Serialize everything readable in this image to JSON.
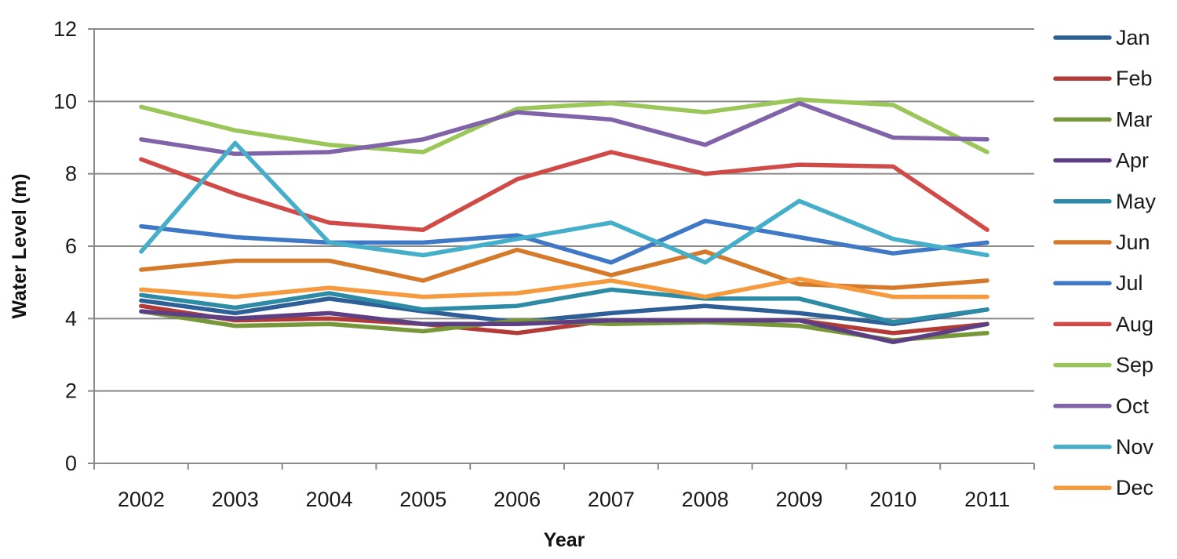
{
  "chart_data": {
    "type": "line",
    "title": "",
    "xlabel": "Year",
    "ylabel": "Water Level (m)",
    "ylim": [
      0,
      12
    ],
    "yticks": [
      0,
      2,
      4,
      6,
      8,
      10,
      12
    ],
    "grid": "horizontal",
    "legend": "right",
    "categories": [
      "2002",
      "2003",
      "2004",
      "2005",
      "2006",
      "2007",
      "2008",
      "2009",
      "2010",
      "2011"
    ],
    "series": [
      {
        "name": "Jan",
        "color": "#2f5f97",
        "values": [
          4.5,
          4.15,
          4.55,
          4.2,
          3.9,
          4.15,
          4.35,
          4.15,
          3.85,
          4.25
        ]
      },
      {
        "name": "Feb",
        "color": "#b23b37",
        "values": [
          4.35,
          3.95,
          4.0,
          3.85,
          3.6,
          3.95,
          3.95,
          3.95,
          3.6,
          3.85
        ]
      },
      {
        "name": "Mar",
        "color": "#77973a",
        "values": [
          4.2,
          3.8,
          3.85,
          3.65,
          3.95,
          3.85,
          3.9,
          3.8,
          3.4,
          3.6
        ]
      },
      {
        "name": "Apr",
        "color": "#5d3f83",
        "values": [
          4.2,
          4.0,
          4.15,
          3.85,
          3.85,
          3.95,
          3.95,
          3.95,
          3.35,
          3.85
        ]
      },
      {
        "name": "May",
        "color": "#2e8ba5",
        "values": [
          4.65,
          4.3,
          4.7,
          4.25,
          4.35,
          4.8,
          4.55,
          4.55,
          3.9,
          4.25
        ]
      },
      {
        "name": "Jun",
        "color": "#d47a2a",
        "values": [
          5.35,
          5.6,
          5.6,
          5.05,
          5.9,
          5.2,
          5.85,
          4.95,
          4.85,
          5.05
        ]
      },
      {
        "name": "Jul",
        "color": "#3f78c5",
        "values": [
          6.55,
          6.25,
          6.1,
          6.1,
          6.3,
          5.55,
          6.7,
          6.25,
          5.8,
          6.1
        ]
      },
      {
        "name": "Aug",
        "color": "#d04b48",
        "values": [
          8.4,
          7.45,
          6.65,
          6.45,
          7.85,
          8.6,
          8.0,
          8.25,
          8.2,
          6.45
        ]
      },
      {
        "name": "Sep",
        "color": "#9bc65a",
        "values": [
          9.85,
          9.2,
          8.8,
          8.6,
          9.8,
          9.95,
          9.7,
          10.05,
          9.9,
          8.6
        ]
      },
      {
        "name": "Oct",
        "color": "#8063a8",
        "values": [
          8.95,
          8.55,
          8.6,
          8.95,
          9.7,
          9.5,
          8.8,
          9.95,
          9.0,
          8.95
        ]
      },
      {
        "name": "Nov",
        "color": "#45afc9",
        "values": [
          5.85,
          8.85,
          6.1,
          5.75,
          6.2,
          6.65,
          5.55,
          7.25,
          6.2,
          5.75
        ]
      },
      {
        "name": "Dec",
        "color": "#f59a3e",
        "values": [
          4.8,
          4.6,
          4.85,
          4.6,
          4.7,
          5.05,
          4.6,
          5.1,
          4.6,
          4.6
        ]
      }
    ]
  }
}
